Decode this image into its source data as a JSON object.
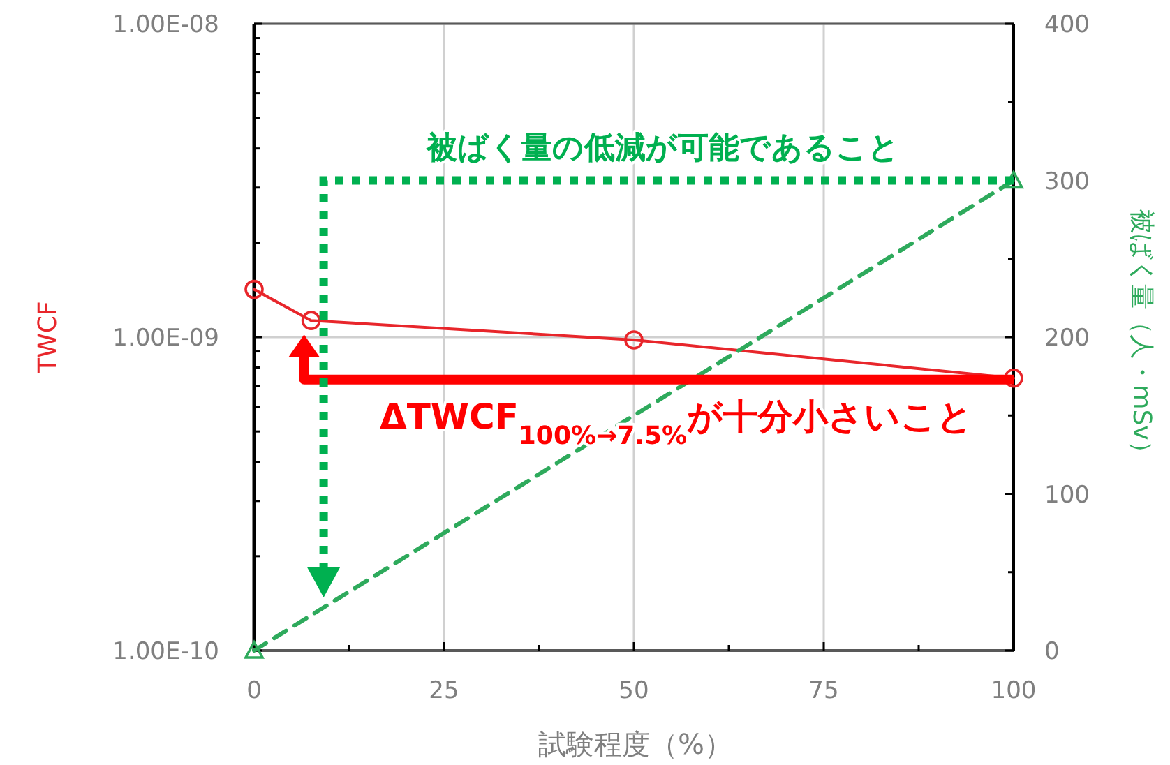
{
  "chart_data": {
    "type": "line",
    "xlabel": "試験程度（%）",
    "ylabel": "TWCF",
    "y2label": "被ばく量（人・mSv）",
    "log": "y",
    "grid": true,
    "xlim": [
      0,
      100
    ],
    "xticks": [
      0,
      25,
      50,
      75,
      100
    ],
    "ylim": [
      1e-10,
      1e-08
    ],
    "yticks": [
      {
        "value": 1e-10,
        "label": "1.00E-10"
      },
      {
        "value": 1e-09,
        "label": "1.00E-09"
      },
      {
        "value": 1e-08,
        "label": "1.00E-08"
      }
    ],
    "y2lim": [
      0,
      400
    ],
    "y2ticks": [
      0,
      100,
      200,
      300,
      400
    ],
    "series": [
      {
        "color": "#e8262b",
        "x": [
          0,
          7.5,
          50,
          100
        ],
        "values": [
          1.42e-09,
          1.13e-09,
          9.8e-10,
          7.4e-10
        ],
        "marker": "circle",
        "line_style": "solid"
      },
      {
        "color": "#2eaa5c",
        "x": [
          0,
          100
        ],
        "values": [
          0,
          300
        ],
        "axis": "y2",
        "marker": "triangle",
        "line_style": "dashed"
      }
    ],
    "annotations": [
      "被ばく量の低減が可能であること",
      "ΔTWCF$_{100%→7.5%}$が十分小さいこと"
    ]
  }
}
